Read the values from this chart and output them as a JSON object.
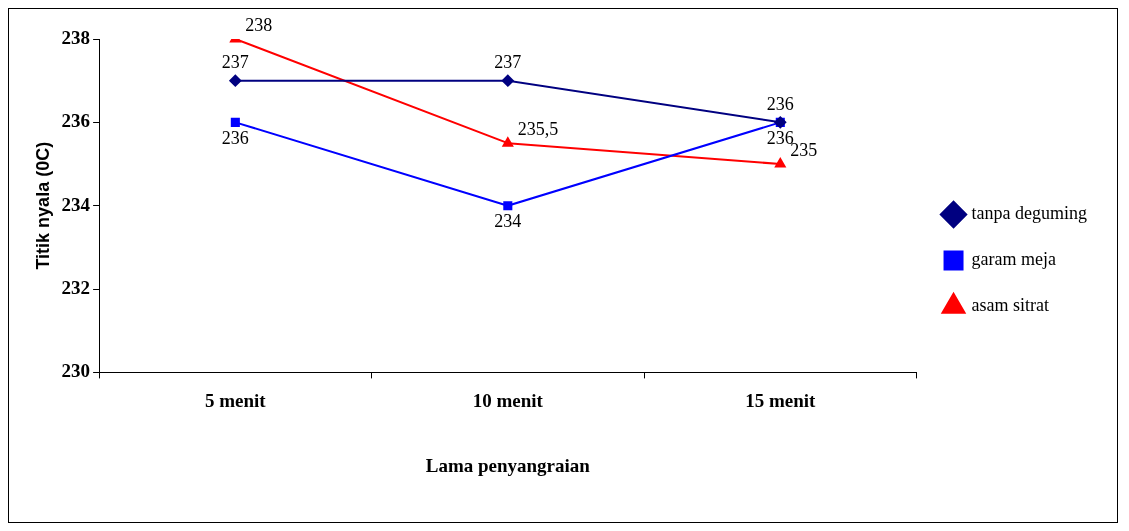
{
  "chart_data": {
    "type": "line",
    "xlabel": "Lama penyangraian",
    "ylabel": "Titik nyala (0C)",
    "categories": [
      "5 menit",
      "10 menit",
      "15 menit"
    ],
    "ylim": [
      230,
      238
    ],
    "yticks": [
      230,
      232,
      234,
      236,
      238
    ],
    "grid": false,
    "legend": "right",
    "series": [
      {
        "name": "tanpa deguming",
        "color": "#000080",
        "marker": "diamond",
        "values": [
          237,
          237,
          236
        ],
        "value_labels": [
          "237",
          "237",
          "236"
        ]
      },
      {
        "name": "garam meja",
        "color": "#0000ff",
        "marker": "square",
        "values": [
          236,
          234,
          236
        ],
        "value_labels": [
          "236",
          "234",
          "236"
        ]
      },
      {
        "name": "asam sitrat",
        "color": "#ff0000",
        "marker": "triangle",
        "values": [
          238,
          235.5,
          235
        ],
        "value_labels": [
          "238",
          "235,5",
          "235"
        ]
      }
    ]
  }
}
